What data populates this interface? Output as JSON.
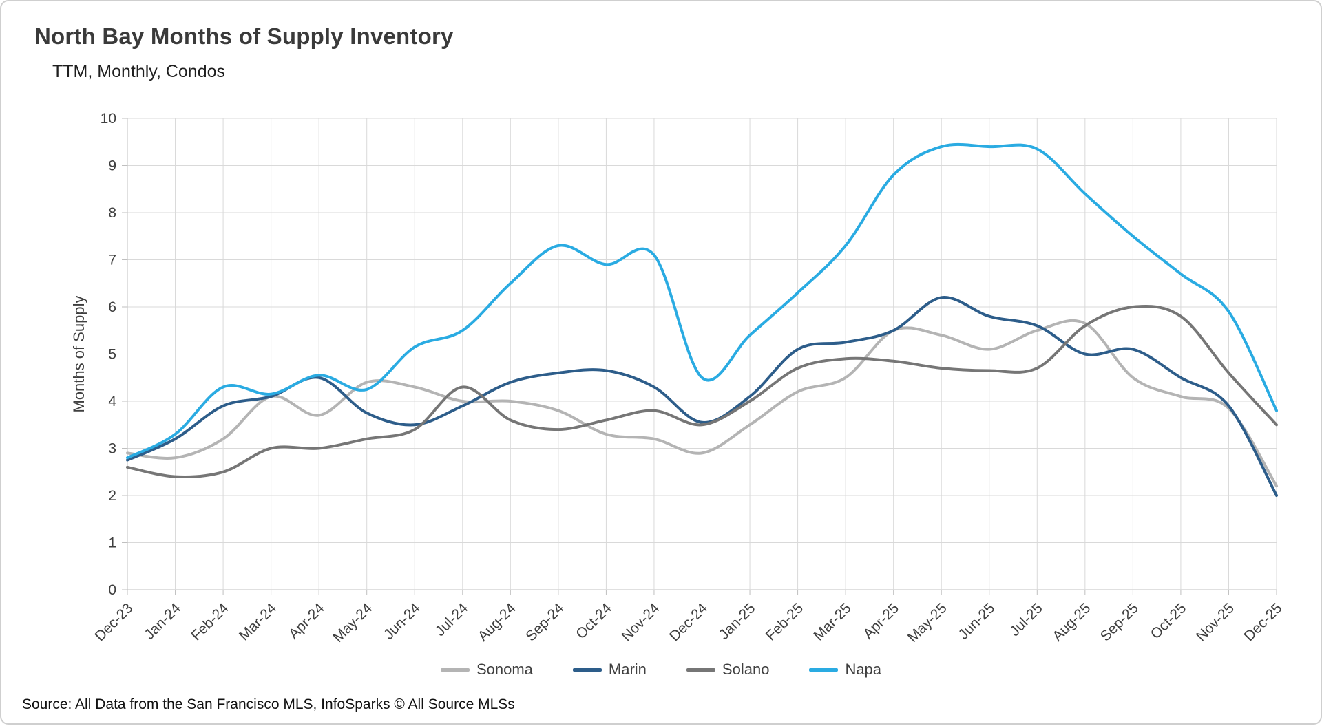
{
  "chart_data": {
    "type": "line",
    "title": "North Bay Months of Supply Inventory",
    "subtitle": "TTM, Monthly, Condos",
    "ylabel": "Months of Supply",
    "xlabel": "",
    "ylim": [
      0,
      10
    ],
    "y_tick_step": 1,
    "grid": true,
    "legend_position": "bottom",
    "x_tick_rotation": 45,
    "grid_color": "#d9d9d9",
    "tick_color": "#3f3f3f",
    "categories": [
      "Dec-23",
      "Jan-24",
      "Feb-24",
      "Mar-24",
      "Apr-24",
      "May-24",
      "Jun-24",
      "Jul-24",
      "Aug-24",
      "Sep-24",
      "Oct-24",
      "Nov-24",
      "Dec-24",
      "Jan-25",
      "Feb-25",
      "Mar-25",
      "Apr-25",
      "May-25",
      "Jun-25",
      "Jul-25",
      "Aug-25",
      "Sep-25",
      "Oct-25",
      "Nov-25",
      "Dec-25"
    ],
    "series": [
      {
        "name": "Sonoma",
        "color": "#b4b4b4",
        "values": [
          2.9,
          2.8,
          3.2,
          4.1,
          3.7,
          4.4,
          4.3,
          4.0,
          4.0,
          3.8,
          3.3,
          3.2,
          2.9,
          3.5,
          4.2,
          4.5,
          5.5,
          5.4,
          5.1,
          5.5,
          5.65,
          4.5,
          4.1,
          3.85,
          2.2
        ]
      },
      {
        "name": "Marin",
        "color": "#2d5d8a",
        "values": [
          2.75,
          3.2,
          3.9,
          4.1,
          4.5,
          3.75,
          3.5,
          3.9,
          4.4,
          4.6,
          4.65,
          4.3,
          3.55,
          4.1,
          5.1,
          5.25,
          5.5,
          6.2,
          5.8,
          5.6,
          5.0,
          5.1,
          4.5,
          3.9,
          2.0
        ]
      },
      {
        "name": "Solano",
        "color": "#767676",
        "values": [
          2.6,
          2.4,
          2.5,
          3.0,
          3.0,
          3.2,
          3.4,
          4.3,
          3.6,
          3.4,
          3.6,
          3.8,
          3.5,
          4.0,
          4.7,
          4.9,
          4.85,
          4.7,
          4.65,
          4.7,
          5.6,
          6.0,
          5.8,
          4.6,
          3.5
        ]
      },
      {
        "name": "Napa",
        "color": "#2aabe2",
        "values": [
          2.8,
          3.3,
          4.3,
          4.15,
          4.55,
          4.25,
          5.15,
          5.5,
          6.5,
          7.3,
          6.9,
          7.1,
          4.5,
          5.4,
          6.3,
          7.3,
          8.8,
          9.4,
          9.4,
          9.35,
          8.4,
          7.5,
          6.7,
          5.9,
          3.8
        ]
      }
    ],
    "source": "Source: All Data from the San Francisco MLS, InfoSparks © All Source MLSs"
  }
}
